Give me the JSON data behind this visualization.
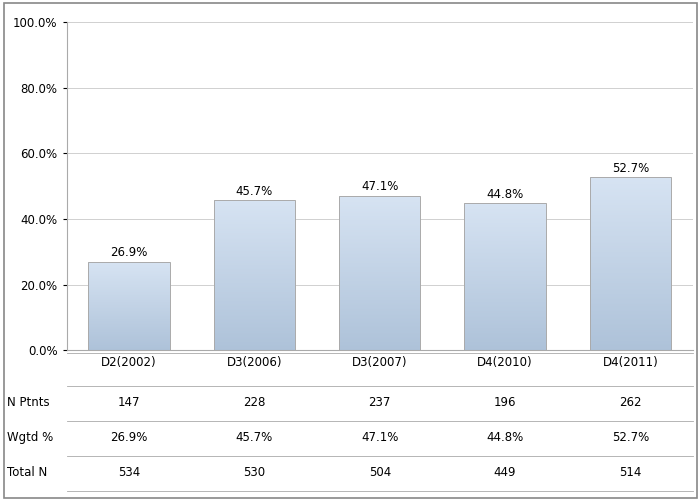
{
  "categories": [
    "D2(2002)",
    "D3(2006)",
    "D3(2007)",
    "D4(2010)",
    "D4(2011)"
  ],
  "values": [
    26.9,
    45.7,
    47.1,
    44.8,
    52.7
  ],
  "labels": [
    "26.9%",
    "45.7%",
    "47.1%",
    "44.8%",
    "52.7%"
  ],
  "n_ptnts": [
    147,
    228,
    237,
    196,
    262
  ],
  "wgtd_pct": [
    "26.9%",
    "45.7%",
    "47.1%",
    "44.8%",
    "52.7%"
  ],
  "total_n": [
    534,
    530,
    504,
    449,
    514
  ],
  "ylim": [
    0,
    100
  ],
  "yticks": [
    0,
    20,
    40,
    60,
    80,
    100
  ],
  "ytick_labels": [
    "0.0%",
    "20.0%",
    "40.0%",
    "60.0%",
    "80.0%",
    "100.0%"
  ],
  "background_color": "#ffffff",
  "grid_color": "#d0d0d0",
  "text_color": "#000000",
  "font_size": 8.5,
  "label_font_size": 8.5,
  "row_labels": [
    "N Ptnts",
    "Wgtd %",
    "Total N"
  ],
  "border_color": "#aaaaaa",
  "outer_border_color": "#888888"
}
